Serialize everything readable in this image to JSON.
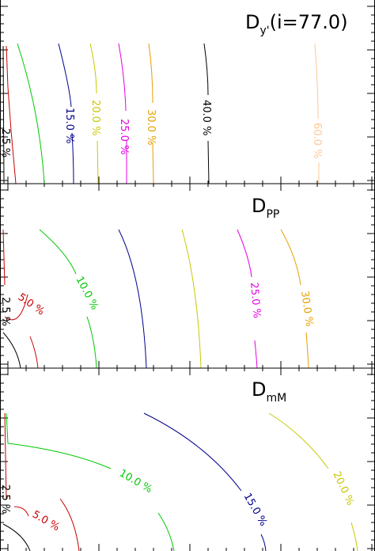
{
  "chart_data": [
    {
      "type": "contour",
      "title": "D_{y'}(i=77.0)",
      "title_parts": {
        "base": "D",
        "sub": "y'",
        "paren": "(i=77.0)"
      },
      "grid": false,
      "levels": [
        {
          "label": "",
          "color": "#c80000"
        },
        {
          "label": "",
          "color": "#00c800"
        },
        {
          "label": "15.0 %",
          "color": "#00008c"
        },
        {
          "label": "20.0 %",
          "color": "#c8c800"
        },
        {
          "label": "25.0 %",
          "color": "#e600e6"
        },
        {
          "label": "30.0 %",
          "color": "#e6a000"
        },
        {
          "label": "40.0 %",
          "color": "#000000"
        },
        {
          "label": "60.0 %",
          "color": "#ffc896"
        }
      ],
      "edge_labels": [
        "2.5 %"
      ]
    },
    {
      "type": "contour",
      "title": "D_PP",
      "title_parts": {
        "base": "D",
        "sub": "PP",
        "paren": ""
      },
      "grid": false,
      "levels": [
        {
          "label": "",
          "color": "#000000"
        },
        {
          "label": "5.0 %",
          "color": "#c80000"
        },
        {
          "label": "10.0 %",
          "color": "#00c800"
        },
        {
          "label": "",
          "color": "#00008c"
        },
        {
          "label": "",
          "color": "#c8c800"
        },
        {
          "label": "25.0 %",
          "color": "#e600e6"
        },
        {
          "label": "30.0 %",
          "color": "#e6a000"
        }
      ],
      "edge_labels": [
        "2.5 %"
      ]
    },
    {
      "type": "contour",
      "title": "D_mM",
      "title_parts": {
        "base": "D",
        "sub": "mM",
        "paren": ""
      },
      "grid": false,
      "levels": [
        {
          "label": "",
          "color": "#000000"
        },
        {
          "label": "5.0 %",
          "color": "#c80000"
        },
        {
          "label": "10.0 %",
          "color": "#00c800"
        },
        {
          "label": "15.0 %",
          "color": "#00008c"
        },
        {
          "label": "20.0 %",
          "color": "#c8c800"
        }
      ],
      "edge_labels": [
        "2.5 %"
      ]
    }
  ]
}
